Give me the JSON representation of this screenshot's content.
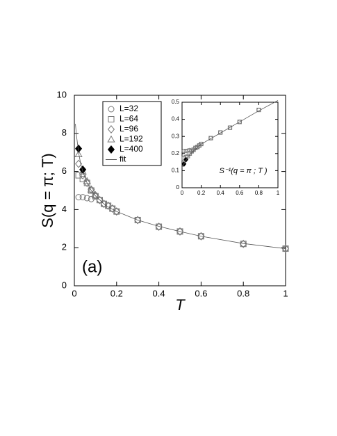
{
  "chart_data": [
    {
      "type": "scatter",
      "x_label": "T",
      "y_label": "S(q = π; T)",
      "annotation": "(a)",
      "xlim": [
        0,
        1
      ],
      "ylim": [
        0,
        10
      ],
      "xticks": [
        0,
        0.2,
        0.4,
        0.6,
        0.8,
        1
      ],
      "yticks": [
        0,
        2,
        4,
        6,
        8,
        10
      ],
      "series": [
        {
          "name": "L=32",
          "marker": "circle",
          "filled": false,
          "color": "#777777",
          "x": [
            0.02,
            0.04,
            0.06,
            0.08,
            0.1,
            0.12,
            0.14,
            0.16,
            0.18,
            0.2,
            0.3,
            0.4,
            0.5,
            0.6,
            0.8,
            1.0
          ],
          "values": [
            4.65,
            4.65,
            4.6,
            4.55,
            4.7,
            4.5,
            4.3,
            4.2,
            4.05,
            3.9,
            3.45,
            3.1,
            2.85,
            2.6,
            2.2,
            1.95
          ]
        },
        {
          "name": "L=64",
          "marker": "square",
          "filled": false,
          "color": "#777777",
          "x": [
            0.02,
            0.04,
            0.06,
            0.08,
            0.1,
            0.12,
            0.14,
            0.16,
            0.18,
            0.2,
            0.3,
            0.4,
            0.5,
            0.6,
            0.8,
            1.0
          ],
          "values": [
            5.8,
            5.6,
            5.4,
            5.0,
            4.7,
            4.5,
            4.3,
            4.2,
            4.05,
            3.9,
            3.45,
            3.1,
            2.85,
            2.6,
            2.2,
            1.95
          ]
        },
        {
          "name": "L=96",
          "marker": "diamond",
          "filled": false,
          "color": "#777777",
          "x": [
            0.02,
            0.04,
            0.06,
            0.08,
            0.1,
            0.12,
            0.14,
            0.16,
            0.18,
            0.2,
            0.3,
            0.4,
            0.5,
            0.6,
            0.8,
            1.0
          ],
          "values": [
            6.4,
            5.8,
            5.4,
            5.05,
            4.75,
            4.5,
            4.3,
            4.2,
            4.05,
            3.9,
            3.45,
            3.1,
            2.85,
            2.6,
            2.2,
            1.95
          ]
        },
        {
          "name": "L=192",
          "marker": "triangle",
          "filled": false,
          "color": "#777777",
          "x": [
            0.02,
            0.04,
            0.06,
            0.08,
            0.1
          ],
          "values": [
            6.9,
            6.0,
            5.5,
            5.05,
            4.75
          ]
        },
        {
          "name": "L=400",
          "marker": "diamond",
          "filled": true,
          "color": "#000000",
          "x": [
            0.02,
            0.04
          ],
          "values": [
            7.2,
            6.1
          ]
        },
        {
          "name": "fit",
          "marker": "line",
          "filled": false,
          "color": "#555555",
          "x": [
            0.005,
            0.01,
            0.02,
            0.03,
            0.04,
            0.06,
            0.08,
            0.1,
            0.15,
            0.2,
            0.3,
            0.4,
            0.5,
            0.6,
            0.8,
            1.0
          ],
          "values": [
            8.5,
            7.9,
            7.0,
            6.4,
            6.0,
            5.4,
            5.0,
            4.72,
            4.2,
            3.9,
            3.45,
            3.12,
            2.85,
            2.6,
            2.22,
            1.95
          ]
        }
      ]
    },
    {
      "type": "scatter",
      "annotation": "S⁻¹(q = π ; T )",
      "xlim": [
        0,
        1
      ],
      "ylim": [
        0,
        0.5
      ],
      "xticks": [
        0,
        0.2,
        0.4,
        0.6,
        0.8,
        1
      ],
      "yticks": [
        0,
        0.1,
        0.2,
        0.3,
        0.4,
        0.5
      ],
      "series": [
        {
          "marker": "circle",
          "filled": false,
          "color": "#777777",
          "x": [
            0.02,
            0.04,
            0.06,
            0.08,
            0.1,
            0.12,
            0.14,
            0.16,
            0.18,
            0.2,
            0.3,
            0.4,
            0.5,
            0.6,
            0.8
          ],
          "values": [
            0.215,
            0.215,
            0.217,
            0.22,
            0.213,
            0.222,
            0.233,
            0.238,
            0.247,
            0.256,
            0.29,
            0.323,
            0.351,
            0.385,
            0.455
          ]
        },
        {
          "marker": "square",
          "filled": false,
          "color": "#777777",
          "x": [
            0.02,
            0.04,
            0.06,
            0.08,
            0.1,
            0.12,
            0.14,
            0.16,
            0.18,
            0.2,
            0.3,
            0.4,
            0.5,
            0.6,
            0.8
          ],
          "values": [
            0.172,
            0.179,
            0.185,
            0.2,
            0.213,
            0.222,
            0.233,
            0.238,
            0.247,
            0.256,
            0.29,
            0.323,
            0.351,
            0.385,
            0.455
          ]
        },
        {
          "marker": "diamond",
          "filled": true,
          "color": "#000000",
          "x": [
            0.02,
            0.04
          ],
          "values": [
            0.139,
            0.164
          ]
        },
        {
          "marker": "line",
          "filled": false,
          "color": "#555555",
          "x": [
            0,
            0.02,
            0.05,
            0.1,
            0.2,
            0.4,
            0.6,
            0.8,
            1.0
          ],
          "values": [
            0.12,
            0.14,
            0.17,
            0.205,
            0.255,
            0.32,
            0.385,
            0.45,
            0.51
          ]
        }
      ]
    }
  ]
}
